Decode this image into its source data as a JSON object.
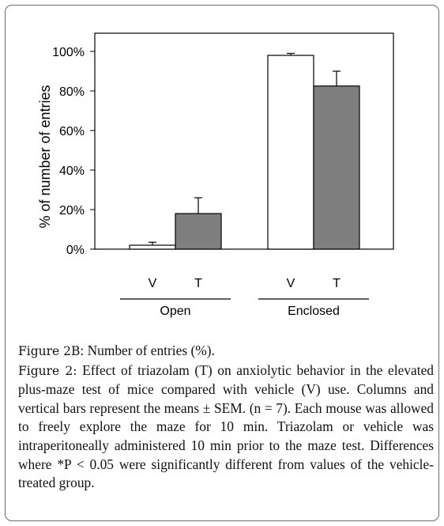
{
  "chart_data": {
    "type": "bar",
    "title": "",
    "xlabel": "",
    "ylabel": "% of number of entries",
    "ylim": [
      0,
      100
    ],
    "y_ticks": [
      "0%",
      "20%",
      "40%",
      "60%",
      "80%",
      "100%"
    ],
    "groups": [
      {
        "name": "Open",
        "bars": [
          {
            "label": "V",
            "value": 2,
            "error": 1.5,
            "fill": "#ffffff"
          },
          {
            "label": "T",
            "value": 18,
            "error": 8,
            "fill": "#7f7f7f"
          }
        ]
      },
      {
        "name": "Enclosed",
        "bars": [
          {
            "label": "V",
            "value": 98,
            "error": 1,
            "fill": "#ffffff"
          },
          {
            "label": "T",
            "value": 82.5,
            "error": 7.5,
            "fill": "#7f7f7f"
          }
        ]
      }
    ],
    "grid": false,
    "legend": "none"
  },
  "caption": {
    "sub_label": "Figure 2B",
    "sub_text": ": Number of entries (%).",
    "main_label": "Figure 2:",
    "main_text": " Effect of triazolam (T) on anxiolytic behavior in the elevated plus-maze test of mice compared with vehicle (V) use. Columns and vertical bars represent the means ± SEM. (n = 7). Each mouse was allowed to freely explore the maze for 10 min. Triazolam or vehicle was intraperitoneally administered 10 min prior to the maze test. Differences where *P < 0.05 were significantly different from values of the vehicle-treated group."
  },
  "colors": {
    "bar_vehicle": "#ffffff",
    "bar_triazolam": "#7f7f7f",
    "stroke": "#000000"
  }
}
